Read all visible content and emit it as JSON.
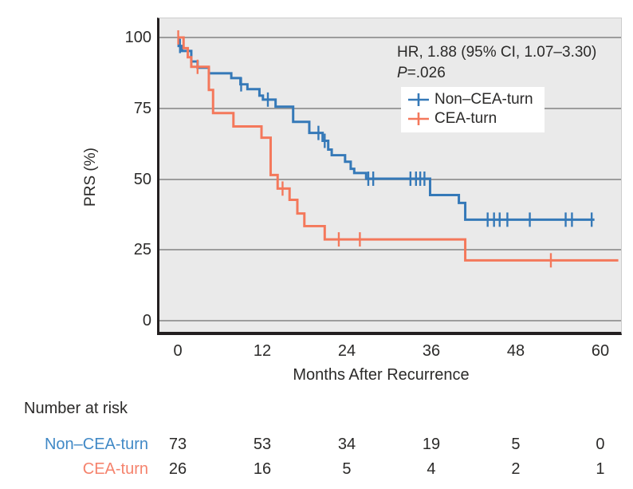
{
  "figure": {
    "annotation": {
      "hr_line": "HR, 1.88 (95% CI, 1.07–3.30)",
      "p_italic": "P",
      "p_rest": "=.026"
    }
  },
  "chart_data": {
    "type": "line",
    "subtype": "kaplan-meier-step-survival",
    "title": "",
    "xlabel": "Months After Recurrence",
    "ylabel": "PRS (%)",
    "xlim": [
      0,
      63
    ],
    "ylim": [
      0,
      100
    ],
    "x_ticks": [
      0,
      12,
      24,
      36,
      48,
      60
    ],
    "y_ticks": [
      100,
      75,
      50,
      25,
      0
    ],
    "grid": "horizontal",
    "plot_background": "#eaeaea",
    "gridline_color": "#9d9d9d",
    "legend_position": "upper-right-inside",
    "annotation": [
      "HR, 1.88 (95% CI, 1.07–3.30)",
      "P=.026"
    ],
    "series": [
      {
        "name": "Non–CEA-turn",
        "color": "#3579b8",
        "n": 73,
        "steps": [
          [
            0,
            100
          ],
          [
            0.1,
            97
          ],
          [
            0.6,
            95.2
          ],
          [
            1.9,
            91.5
          ],
          [
            2.8,
            89.3
          ],
          [
            4.4,
            87.3
          ],
          [
            7.6,
            85.6
          ],
          [
            8.9,
            83.4
          ],
          [
            9.9,
            81.7
          ],
          [
            11.6,
            79.4
          ],
          [
            12.1,
            78
          ],
          [
            13.9,
            75.5
          ],
          [
            16.4,
            70.1
          ],
          [
            18.7,
            66.2
          ],
          [
            20.6,
            63.4
          ],
          [
            21.4,
            60.3
          ],
          [
            21.9,
            58.3
          ],
          [
            23.8,
            56
          ],
          [
            24.6,
            53.5
          ],
          [
            25.1,
            52
          ],
          [
            26.8,
            50
          ],
          [
            35.9,
            44.2
          ],
          [
            40,
            41.4
          ],
          [
            40.9,
            35.5
          ]
        ],
        "end_month": 59.3,
        "censor_ticks": [
          [
            0.3,
            97
          ],
          [
            9,
            83.4
          ],
          [
            12.8,
            78
          ],
          [
            20,
            66.2
          ],
          [
            20.9,
            63.4
          ],
          [
            27.1,
            50
          ],
          [
            27.8,
            50
          ],
          [
            33.1,
            50
          ],
          [
            33.9,
            50
          ],
          [
            34.5,
            50
          ],
          [
            35.1,
            50
          ],
          [
            44.1,
            35.5
          ],
          [
            45,
            35.5
          ],
          [
            45.8,
            35.5
          ],
          [
            46.9,
            35.5
          ],
          [
            50.1,
            35.5
          ],
          [
            55.2,
            35.5
          ],
          [
            56.1,
            35.5
          ],
          [
            58.9,
            35.5
          ]
        ]
      },
      {
        "name": "CEA-turn",
        "color": "#f4785b",
        "n": 26,
        "steps": [
          [
            0,
            100
          ],
          [
            0.8,
            96.2
          ],
          [
            1.4,
            93
          ],
          [
            1.9,
            89.6
          ],
          [
            4.4,
            81.4
          ],
          [
            5,
            73.2
          ],
          [
            7.9,
            68.5
          ],
          [
            11.9,
            64.5
          ],
          [
            13.2,
            51.3
          ],
          [
            14.2,
            46.5
          ],
          [
            15.9,
            42.5
          ],
          [
            17,
            37.7
          ],
          [
            18,
            33.2
          ],
          [
            20.9,
            28.5
          ],
          [
            40.9,
            21.1
          ]
        ],
        "end_month": 62.7,
        "censor_ticks": [
          [
            0.05,
            100
          ],
          [
            2.8,
            89.6
          ],
          [
            14.9,
            46.5
          ],
          [
            22.9,
            28.5
          ],
          [
            25.9,
            28.5
          ],
          [
            53.1,
            21.1
          ]
        ]
      }
    ],
    "number_at_risk": {
      "title": "Number at risk",
      "timepoints": [
        0,
        12,
        24,
        36,
        48,
        60
      ],
      "rows": [
        {
          "label": "Non–CEA-turn",
          "color": "#4189c6",
          "values": [
            73,
            53,
            34,
            19,
            5,
            0
          ]
        },
        {
          "label": "CEA-turn",
          "color": "#f5836d",
          "values": [
            26,
            16,
            5,
            4,
            2,
            1
          ]
        }
      ]
    }
  }
}
